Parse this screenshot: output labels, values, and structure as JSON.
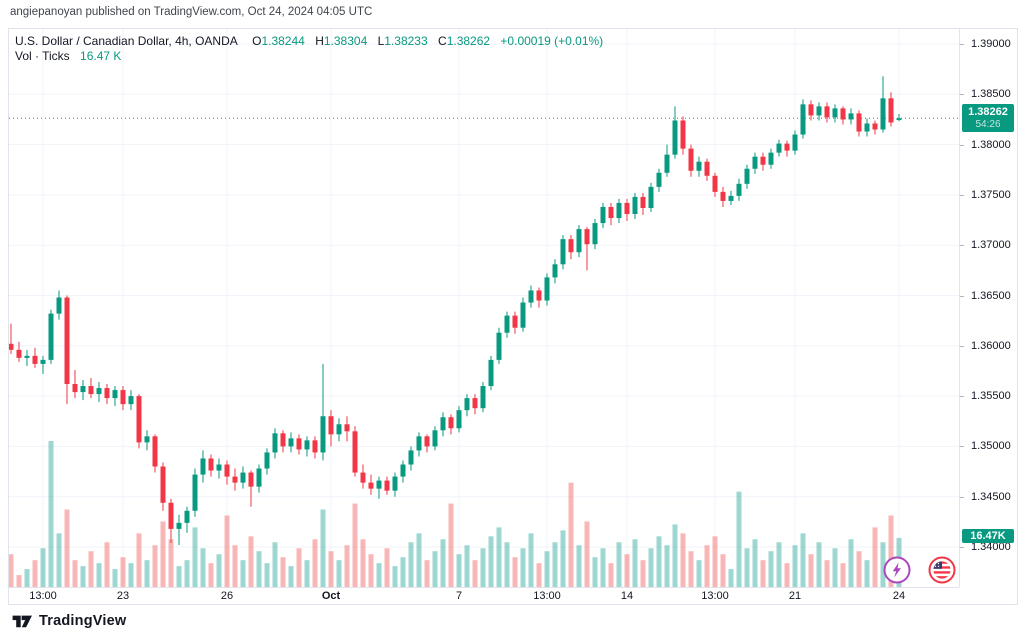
{
  "attribution": "angiepanoyan published on TradingView.com, Oct 24, 2024 04:05 UTC",
  "legend": {
    "title": "U.S. Dollar / Canadian Dollar, 4h, OANDA",
    "open_label": "O",
    "open": "1.38244",
    "high_label": "H",
    "high": "1.38304",
    "low_label": "L",
    "low": "1.38233",
    "close_label": "C",
    "close": "1.38262",
    "change": "+0.00019 (+0.01%)",
    "volume_label": "Vol · Ticks",
    "volume_value": "16.47 K"
  },
  "last_price_badge": {
    "price": "1.38262",
    "countdown": "54:26",
    "value": 1.38262
  },
  "volume_badge": {
    "text": "16.47K",
    "value": 16.47
  },
  "footer": {
    "logo_text": "TradingView"
  },
  "colors": {
    "up": "#089981",
    "down": "#f23645",
    "up_volume": "rgba(38,166,154,0.45)",
    "down_volume": "rgba(239,83,80,0.42)",
    "badge_bg": "#089981",
    "grid": "#f0f3fa",
    "axis_text": "#131722",
    "price_line": "#089981",
    "purple_icon": "#ab47bc",
    "flag_red": "#f23645",
    "flag_blue": "#3c3b6e"
  },
  "chart_data": {
    "type": "candlestick",
    "title": "U.S. Dollar / Canadian Dollar, 4h, OANDA",
    "symbol": "USD/CAD",
    "interval": "4h",
    "exchange": "OANDA",
    "grid": true,
    "legend_position": "top-left",
    "price_axis": {
      "labels": [
        "1.39000",
        "1.38500",
        "1.38000",
        "1.37500",
        "1.37000",
        "1.36500",
        "1.36000",
        "1.35500",
        "1.35000",
        "1.34500",
        "1.34000"
      ],
      "values": [
        1.39,
        1.385,
        1.38,
        1.375,
        1.37,
        1.365,
        1.36,
        1.355,
        1.35,
        1.345,
        1.34
      ],
      "min": 1.34,
      "max": 1.39,
      "step": 0.005
    },
    "time_axis": {
      "labels": [
        {
          "text": "13:00",
          "bar": 4,
          "bold": false
        },
        {
          "text": "23",
          "bar": 14,
          "bold": false
        },
        {
          "text": "26",
          "bar": 27,
          "bold": false
        },
        {
          "text": "Oct",
          "bar": 40,
          "bold": true
        },
        {
          "text": "7",
          "bar": 56,
          "bold": false
        },
        {
          "text": "13:00",
          "bar": 67,
          "bold": false
        },
        {
          "text": "14",
          "bar": 77,
          "bold": false
        },
        {
          "text": "13:00",
          "bar": 88,
          "bold": false
        },
        {
          "text": "21",
          "bar": 98,
          "bold": false
        },
        {
          "text": "24",
          "bar": 111,
          "bold": false
        }
      ]
    },
    "current_price": 1.38262,
    "ohlc_bars": [
      [
        1.3602,
        1.3622,
        1.3592,
        1.3596
      ],
      [
        1.3596,
        1.3604,
        1.3584,
        1.3588
      ],
      [
        1.3588,
        1.3596,
        1.358,
        1.359
      ],
      [
        1.359,
        1.3598,
        1.3578,
        1.3582
      ],
      [
        1.3582,
        1.359,
        1.3572,
        1.3586
      ],
      [
        1.3586,
        1.3636,
        1.3582,
        1.3632
      ],
      [
        1.3632,
        1.3655,
        1.3626,
        1.3648
      ],
      [
        1.3648,
        1.365,
        1.3542,
        1.3562
      ],
      [
        1.3562,
        1.3576,
        1.3548,
        1.3554
      ],
      [
        1.3554,
        1.3566,
        1.3546,
        1.356
      ],
      [
        1.356,
        1.3568,
        1.3548,
        1.3552
      ],
      [
        1.3552,
        1.3564,
        1.3544,
        1.3558
      ],
      [
        1.3558,
        1.3562,
        1.3542,
        1.3548
      ],
      [
        1.3548,
        1.356,
        1.354,
        1.3556
      ],
      [
        1.3556,
        1.356,
        1.3536,
        1.3542
      ],
      [
        1.3542,
        1.3556,
        1.3536,
        1.355
      ],
      [
        1.355,
        1.3552,
        1.3498,
        1.3504
      ],
      [
        1.3504,
        1.3516,
        1.3496,
        1.351
      ],
      [
        1.351,
        1.3512,
        1.3474,
        1.348
      ],
      [
        1.348,
        1.3484,
        1.3436,
        1.3444
      ],
      [
        1.3444,
        1.3448,
        1.3404,
        1.3418
      ],
      [
        1.3418,
        1.3432,
        1.3402,
        1.3424
      ],
      [
        1.3424,
        1.344,
        1.3414,
        1.3436
      ],
      [
        1.3436,
        1.3478,
        1.343,
        1.3472
      ],
      [
        1.3472,
        1.3496,
        1.3464,
        1.3488
      ],
      [
        1.3488,
        1.3492,
        1.347,
        1.3476
      ],
      [
        1.3476,
        1.3488,
        1.3468,
        1.3482
      ],
      [
        1.3482,
        1.3486,
        1.3462,
        1.347
      ],
      [
        1.347,
        1.3478,
        1.3456,
        1.3464
      ],
      [
        1.3464,
        1.348,
        1.3458,
        1.3474
      ],
      [
        1.3474,
        1.3476,
        1.344,
        1.346
      ],
      [
        1.346,
        1.3482,
        1.3454,
        1.3478
      ],
      [
        1.3478,
        1.3498,
        1.3472,
        1.3494
      ],
      [
        1.3494,
        1.3518,
        1.3488,
        1.3513
      ],
      [
        1.3513,
        1.3516,
        1.3494,
        1.35
      ],
      [
        1.35,
        1.3514,
        1.3494,
        1.3508
      ],
      [
        1.3508,
        1.3512,
        1.3492,
        1.3497
      ],
      [
        1.3497,
        1.351,
        1.349,
        1.3506
      ],
      [
        1.3506,
        1.351,
        1.3488,
        1.3494
      ],
      [
        1.3494,
        1.3582,
        1.3486,
        1.353
      ],
      [
        1.353,
        1.3536,
        1.35,
        1.3512
      ],
      [
        1.3512,
        1.3528,
        1.3505,
        1.3522
      ],
      [
        1.3522,
        1.353,
        1.3505,
        1.3515
      ],
      [
        1.3515,
        1.352,
        1.347,
        1.3474
      ],
      [
        1.3474,
        1.3482,
        1.3458,
        1.3464
      ],
      [
        1.3464,
        1.3472,
        1.3452,
        1.3458
      ],
      [
        1.3458,
        1.347,
        1.3448,
        1.3466
      ],
      [
        1.3466,
        1.347,
        1.3452,
        1.3456
      ],
      [
        1.3456,
        1.3474,
        1.345,
        1.347
      ],
      [
        1.347,
        1.3486,
        1.3464,
        1.3482
      ],
      [
        1.3482,
        1.35,
        1.3476,
        1.3496
      ],
      [
        1.3496,
        1.3514,
        1.349,
        1.351
      ],
      [
        1.351,
        1.3512,
        1.3494,
        1.35
      ],
      [
        1.35,
        1.352,
        1.3496,
        1.3516
      ],
      [
        1.3516,
        1.3534,
        1.351,
        1.3529
      ],
      [
        1.3529,
        1.3532,
        1.3512,
        1.3518
      ],
      [
        1.3518,
        1.354,
        1.3514,
        1.3536
      ],
      [
        1.3536,
        1.3552,
        1.353,
        1.3548
      ],
      [
        1.3548,
        1.3552,
        1.3532,
        1.3538
      ],
      [
        1.3538,
        1.3564,
        1.3534,
        1.356
      ],
      [
        1.356,
        1.359,
        1.3556,
        1.3586
      ],
      [
        1.3586,
        1.3618,
        1.3582,
        1.3613
      ],
      [
        1.3613,
        1.3634,
        1.3608,
        1.363
      ],
      [
        1.363,
        1.3634,
        1.3612,
        1.3618
      ],
      [
        1.3618,
        1.3648,
        1.3614,
        1.3643
      ],
      [
        1.3643,
        1.366,
        1.3638,
        1.3655
      ],
      [
        1.3655,
        1.3658,
        1.3638,
        1.3645
      ],
      [
        1.3645,
        1.3672,
        1.364,
        1.3668
      ],
      [
        1.3668,
        1.3686,
        1.3662,
        1.3681
      ],
      [
        1.3681,
        1.371,
        1.3676,
        1.3706
      ],
      [
        1.3706,
        1.371,
        1.3686,
        1.3693
      ],
      [
        1.3693,
        1.372,
        1.3688,
        1.3716
      ],
      [
        1.3716,
        1.3718,
        1.3675,
        1.3701
      ],
      [
        1.3701,
        1.3726,
        1.3696,
        1.3722
      ],
      [
        1.3722,
        1.3742,
        1.3717,
        1.3738
      ],
      [
        1.3738,
        1.3742,
        1.372,
        1.3727
      ],
      [
        1.3727,
        1.3746,
        1.3722,
        1.3742
      ],
      [
        1.3742,
        1.3746,
        1.3724,
        1.3731
      ],
      [
        1.3731,
        1.3752,
        1.3726,
        1.3748
      ],
      [
        1.3748,
        1.3752,
        1.373,
        1.3737
      ],
      [
        1.3737,
        1.3762,
        1.3733,
        1.3758
      ],
      [
        1.3758,
        1.3776,
        1.3753,
        1.3772
      ],
      [
        1.3772,
        1.38,
        1.3768,
        1.379
      ],
      [
        1.379,
        1.3838,
        1.3786,
        1.3824
      ],
      [
        1.3824,
        1.3828,
        1.379,
        1.3796
      ],
      [
        1.3796,
        1.38,
        1.3768,
        1.3774
      ],
      [
        1.3774,
        1.3788,
        1.3768,
        1.3783
      ],
      [
        1.3783,
        1.3786,
        1.3764,
        1.3769
      ],
      [
        1.3769,
        1.3772,
        1.3748,
        1.3753
      ],
      [
        1.3753,
        1.3758,
        1.3738,
        1.3744
      ],
      [
        1.3744,
        1.3754,
        1.374,
        1.3749
      ],
      [
        1.3749,
        1.3766,
        1.3744,
        1.3761
      ],
      [
        1.3761,
        1.378,
        1.3756,
        1.3776
      ],
      [
        1.3776,
        1.3792,
        1.3771,
        1.3788
      ],
      [
        1.3788,
        1.3792,
        1.3774,
        1.378
      ],
      [
        1.378,
        1.3796,
        1.3776,
        1.3792
      ],
      [
        1.3792,
        1.3805,
        1.3788,
        1.3801
      ],
      [
        1.3801,
        1.3804,
        1.3788,
        1.3794
      ],
      [
        1.3794,
        1.3814,
        1.379,
        1.381
      ],
      [
        1.381,
        1.3845,
        1.3806,
        1.384
      ],
      [
        1.384,
        1.3844,
        1.3824,
        1.3829
      ],
      [
        1.3829,
        1.3842,
        1.3824,
        1.3838
      ],
      [
        1.3838,
        1.3842,
        1.3822,
        1.3827
      ],
      [
        1.3827,
        1.384,
        1.3822,
        1.3836
      ],
      [
        1.3836,
        1.3838,
        1.382,
        1.3825
      ],
      [
        1.3825,
        1.3836,
        1.382,
        1.3831
      ],
      [
        1.3831,
        1.3834,
        1.3808,
        1.3813
      ],
      [
        1.3813,
        1.3826,
        1.3808,
        1.3821
      ],
      [
        1.3821,
        1.3824,
        1.381,
        1.3815
      ],
      [
        1.3815,
        1.3868,
        1.3812,
        1.3846
      ],
      [
        1.3846,
        1.3852,
        1.3818,
        1.3822
      ],
      [
        1.38244,
        1.38304,
        1.38233,
        1.38262
      ]
    ],
    "volumes_k": [
      11,
      4,
      6,
      9,
      13,
      49,
      18,
      26,
      9,
      7,
      12,
      8,
      15,
      6,
      10,
      8,
      18,
      9,
      14,
      22,
      16,
      7,
      9,
      20,
      13,
      8,
      11,
      24,
      14,
      9,
      17,
      12,
      8,
      15,
      10,
      7,
      13,
      9,
      16,
      26,
      12,
      9,
      14,
      28,
      16,
      11,
      8,
      13,
      7,
      10,
      15,
      18,
      9,
      12,
      16,
      28,
      11,
      14,
      9,
      13,
      17,
      20,
      15,
      10,
      13,
      18,
      8,
      12,
      15,
      19,
      35,
      14,
      22,
      10,
      13,
      8,
      15,
      11,
      16,
      9,
      13,
      17,
      14,
      21,
      18,
      12,
      9,
      14,
      17,
      11,
      6,
      32,
      13,
      16,
      9,
      12,
      15,
      8,
      14,
      18,
      11,
      15,
      9,
      13,
      8,
      16,
      12,
      9,
      20,
      15,
      24,
      16.47
    ],
    "volume_series_name": "Vol · Ticks",
    "last_volume_label": "16.47K"
  }
}
